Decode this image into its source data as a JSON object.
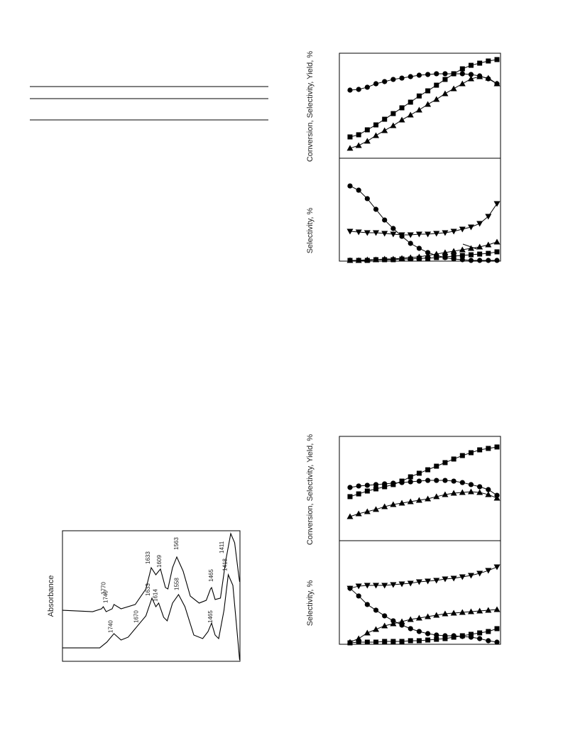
{
  "chart_data": [
    {
      "type": "line",
      "ylabel": "Conversion, Selectivity, Yield, %",
      "ylim": [
        0,
        100
      ],
      "series": [
        {
          "marker": "circle",
          "color": "#000000",
          "values": [
            66.2,
            66.9,
            69.0,
            72.4,
            74.5,
            76.6,
            77.9,
            79.3,
            80.7,
            81.4,
            82.1,
            82.1,
            82.1,
            82.1,
            81.4,
            80.0,
            77.2,
            72.4
          ]
        },
        {
          "marker": "square",
          "color": "#000000",
          "values": [
            20.7,
            22.8,
            27.6,
            32.4,
            37.9,
            43.4,
            49.0,
            54.5,
            60.5,
            65.5,
            71.0,
            76.6,
            82.1,
            86.9,
            90.3,
            92.4,
            94.5,
            95.9
          ]
        },
        {
          "marker": "triangle",
          "color": "#000000",
          "values": [
            9.7,
            12.4,
            16.6,
            22.1,
            26.9,
            31.7,
            37.2,
            42.1,
            46.9,
            52.4,
            57.2,
            62.8,
            67.6,
            72.4,
            77.2,
            79.3,
            77.9,
            72.4
          ]
        }
      ]
    },
    {
      "type": "line",
      "ylabel": "Selectivity, %",
      "ylim": [
        0,
        100
      ],
      "series": [
        {
          "marker": "circle",
          "color": "#000000",
          "values": [
            74.6,
            70.4,
            62.0,
            51.4,
            40.8,
            32.4,
            24.6,
            17.6,
            12.7,
            8.5,
            5.6,
            3.5,
            2.1,
            1.4,
            0.7,
            0.7,
            0.7,
            0.7
          ]
        },
        {
          "marker": "triangle-down",
          "color": "#000000",
          "values": [
            29.6,
            28.9,
            28.2,
            28.2,
            27.5,
            26.8,
            26.1,
            26.1,
            26.8,
            26.8,
            27.5,
            28.2,
            29.6,
            31.7,
            33.8,
            37.3,
            44.4,
            57.0
          ]
        },
        {
          "marker": "triangle",
          "color": "#000000",
          "values": [
            0.7,
            0.7,
            1.4,
            1.4,
            2.1,
            2.1,
            2.8,
            3.5,
            4.2,
            5.6,
            7.0,
            8.5,
            9.9,
            11.3,
            12.7,
            14.1,
            16.2,
            19.0
          ]
        },
        {
          "marker": "square",
          "color": "#000000",
          "values": [
            0.7,
            0.7,
            0.7,
            1.4,
            1.4,
            1.4,
            2.1,
            2.1,
            2.8,
            2.8,
            3.5,
            4.2,
            4.9,
            5.6,
            6.3,
            7.0,
            7.7,
            9.2
          ]
        }
      ]
    },
    {
      "type": "line",
      "ylabel": "Conversion, Selectivity, Yield, %",
      "ylim": [
        0,
        100
      ],
      "series": [
        {
          "marker": "circle",
          "color": "#000000",
          "values": [
            52.1,
            53.5,
            54.2,
            54.9,
            55.6,
            56.3,
            56.9,
            57.6,
            58.3,
            59.0,
            59.0,
            59.0,
            58.3,
            56.9,
            54.9,
            52.8,
            50.0,
            44.4
          ]
        },
        {
          "marker": "square",
          "color": "#000000",
          "values": [
            43.1,
            45.8,
            48.6,
            50.7,
            52.8,
            54.9,
            58.3,
            62.5,
            66.0,
            69.4,
            72.9,
            76.4,
            79.9,
            83.3,
            86.1,
            88.9,
            90.3,
            91.7
          ]
        },
        {
          "marker": "triangle",
          "color": "#000000",
          "values": [
            23.6,
            26.4,
            28.5,
            30.6,
            33.3,
            35.4,
            36.8,
            38.2,
            39.6,
            41.0,
            43.1,
            45.1,
            46.5,
            47.2,
            47.9,
            47.2,
            45.1,
            41.7
          ]
        }
      ]
    },
    {
      "type": "line",
      "ylabel": "Selectivity, %",
      "ylim": [
        0,
        100
      ],
      "series": [
        {
          "marker": "circle",
          "color": "#000000",
          "values": [
            55.2,
            47.6,
            39.2,
            33.6,
            28.0,
            23.1,
            18.9,
            15.4,
            12.6,
            10.5,
            9.1,
            8.4,
            8.4,
            7.7,
            7.0,
            5.6,
            3.5,
            2.1
          ]
        },
        {
          "marker": "triangle-down",
          "color": "#000000",
          "values": [
            55.2,
            57.3,
            58.0,
            58.0,
            58.0,
            58.7,
            59.4,
            60.1,
            61.5,
            62.2,
            62.9,
            64.3,
            65.0,
            66.4,
            67.8,
            69.9,
            72.7,
            76.2
          ]
        },
        {
          "marker": "triangle",
          "color": "#000000",
          "values": [
            2.1,
            5.6,
            11.2,
            14.7,
            18.2,
            20.3,
            22.4,
            24.5,
            25.9,
            27.3,
            28.7,
            30.1,
            30.8,
            31.5,
            32.2,
            32.9,
            33.6,
            34.3
          ]
        },
        {
          "marker": "square",
          "color": "#000000",
          "values": [
            1.4,
            2.1,
            2.1,
            2.1,
            2.8,
            2.8,
            2.8,
            3.5,
            3.5,
            4.2,
            4.9,
            5.6,
            7.0,
            8.4,
            9.8,
            11.2,
            12.6,
            15.4
          ]
        }
      ]
    },
    {
      "type": "spectrum",
      "ylabel": "Absorbance",
      "xlim": [
        1885,
        1385
      ],
      "ylim": [
        0,
        100
      ],
      "series": [
        {
          "color": "#000000",
          "x": [
            1885,
            1800,
            1775,
            1770,
            1762,
            1745,
            1740,
            1720,
            1680,
            1650,
            1635,
            1622,
            1609,
            1595,
            1588,
            1575,
            1563,
            1545,
            1525,
            1500,
            1480,
            1468,
            1465,
            1455,
            1440,
            1425,
            1411,
            1400,
            1390,
            1386
          ],
          "values": [
            39.1,
            38.0,
            40.2,
            41.8,
            38.0,
            40.2,
            43.5,
            40.2,
            43.5,
            55.4,
            71.7,
            66.3,
            70.7,
            56.5,
            55.4,
            71.7,
            79.9,
            69.0,
            50.0,
            44.6,
            46.7,
            55.4,
            56.5,
            47.3,
            48.4,
            77.2,
            97.8,
            90.8,
            69.0,
            60.9
          ]
        },
        {
          "color": "#000000",
          "x": [
            1885,
            1780,
            1760,
            1740,
            1720,
            1700,
            1670,
            1650,
            1633,
            1622,
            1614,
            1600,
            1590,
            1575,
            1558,
            1540,
            1515,
            1490,
            1475,
            1465,
            1455,
            1445,
            1430,
            1418,
            1405,
            1395,
            1386
          ],
          "values": [
            10.3,
            10.3,
            14.7,
            21.2,
            16.3,
            18.5,
            28.3,
            34.8,
            48.4,
            41.8,
            44.6,
            33.7,
            31.0,
            44.6,
            51.1,
            41.8,
            20.1,
            17.4,
            22.8,
            29.3,
            20.1,
            17.4,
            39.1,
            66.3,
            58.2,
            28.3,
            1.1
          ]
        }
      ],
      "peak_labels": [
        [
          1770,
          1740,
          1633,
          1609,
          1563,
          1465,
          1411
        ],
        [
          1740,
          1670,
          1633,
          1614,
          1558,
          1465,
          1418
        ]
      ]
    }
  ]
}
